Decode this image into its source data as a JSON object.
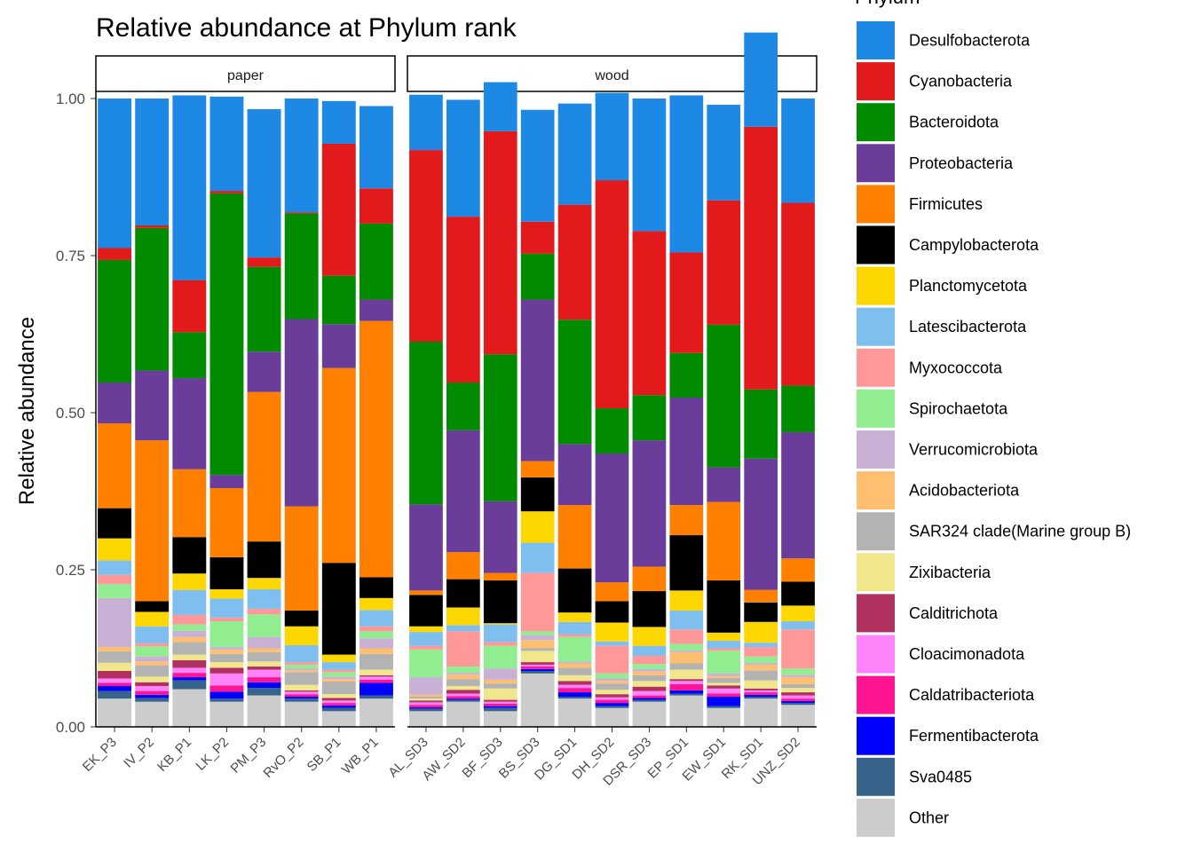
{
  "chart_data": {
    "type": "bar",
    "stacked": true,
    "title": "Relative abundance at Phylum rank",
    "ylabel": "Relative abundance",
    "xlabel": "",
    "ylim": [
      0,
      1
    ],
    "yticks": [
      "0.00",
      "0.25",
      "0.50",
      "0.75",
      "1.00"
    ],
    "legend": {
      "title": "Phylum",
      "position": "right"
    },
    "series": [
      {
        "name": "Other",
        "color": "#CCCCCC"
      },
      {
        "name": "Sva0485",
        "color": "#36648B"
      },
      {
        "name": "Fermentibacterota",
        "color": "#0000FF"
      },
      {
        "name": "Caldatribacteriota",
        "color": "#FF1493"
      },
      {
        "name": "Cloacimonadota",
        "color": "#FF83FA"
      },
      {
        "name": "Calditrichota",
        "color": "#B03060"
      },
      {
        "name": "Zixibacteria",
        "color": "#F0E68C"
      },
      {
        "name": "SAR324 clade(Marine group B)",
        "color": "#B3B3B3"
      },
      {
        "name": "Acidobacteriota",
        "color": "#FFBF70"
      },
      {
        "name": "Verrucomicrobiota",
        "color": "#C9B1D6"
      },
      {
        "name": "Spirochaetota",
        "color": "#90EE90"
      },
      {
        "name": "Myxococcota",
        "color": "#FF9999"
      },
      {
        "name": "Latescibacterota",
        "color": "#7FBFEF"
      },
      {
        "name": "Planctomycetota",
        "color": "#FFD700"
      },
      {
        "name": "Campylobacterota",
        "color": "#000000"
      },
      {
        "name": "Firmicutes",
        "color": "#FF7F00"
      },
      {
        "name": "Proteobacteria",
        "color": "#6A3D9A"
      },
      {
        "name": "Bacteroidota",
        "color": "#008B00"
      },
      {
        "name": "Cyanobacteria",
        "color": "#E31A1C"
      },
      {
        "name": "Desulfobacterota",
        "color": "#1E88E5"
      }
    ],
    "facets": [
      {
        "name": "paper",
        "samples": [
          {
            "name": "EK_P3",
            "values": [
              0.045,
              0.012,
              0.008,
              0.005,
              0.007,
              0.012,
              0.013,
              0.018,
              0.007,
              0.078,
              0.022,
              0.015,
              0.023,
              0.035,
              0.048,
              0.135,
              0.065,
              0.195,
              0.019,
              0.238
            ]
          },
          {
            "name": "IV_P2",
            "values": [
              0.04,
              0.006,
              0.005,
              0.006,
              0.008,
              0.006,
              0.009,
              0.018,
              0.006,
              0.008,
              0.016,
              0.005,
              0.027,
              0.023,
              0.017,
              0.256,
              0.111,
              0.227,
              0.004,
              0.202
            ]
          },
          {
            "name": "KB_P1",
            "values": [
              0.06,
              0.014,
              0.005,
              0.007,
              0.008,
              0.012,
              0.009,
              0.02,
              0.008,
              0.01,
              0.01,
              0.015,
              0.04,
              0.026,
              0.058,
              0.108,
              0.145,
              0.073,
              0.083,
              0.294
            ]
          },
          {
            "name": "LK_P2",
            "values": [
              0.04,
              0.005,
              0.011,
              0.01,
              0.019,
              0.009,
              0.009,
              0.013,
              0.007,
              0.004,
              0.041,
              0.006,
              0.03,
              0.015,
              0.051,
              0.11,
              0.021,
              0.448,
              0.004,
              0.15
            ]
          },
          {
            "name": "PM_P3",
            "values": [
              0.05,
              0.012,
              0.009,
              0.008,
              0.012,
              0.005,
              0.008,
              0.015,
              0.006,
              0.018,
              0.036,
              0.009,
              0.031,
              0.018,
              0.058,
              0.238,
              0.064,
              0.135,
              0.015,
              0.236
            ]
          },
          {
            "name": "RvO_P2",
            "values": [
              0.04,
              0.005,
              0.003,
              0.004,
              0.004,
              0.002,
              0.009,
              0.02,
              0.003,
              0.003,
              0.006,
              0.004,
              0.027,
              0.03,
              0.025,
              0.166,
              0.298,
              0.168,
              0.002,
              0.181
            ]
          },
          {
            "name": "SB_P1",
            "values": [
              0.025,
              0.005,
              0.004,
              0.004,
              0.004,
              0.004,
              0.006,
              0.02,
              0.004,
              0.004,
              0.007,
              0.004,
              0.012,
              0.012,
              0.146,
              0.31,
              0.07,
              0.077,
              0.21,
              0.068
            ]
          },
          {
            "name": "WB_P1",
            "values": [
              0.045,
              0.005,
              0.02,
              0.005,
              0.005,
              0.002,
              0.009,
              0.025,
              0.009,
              0.016,
              0.011,
              0.008,
              0.026,
              0.019,
              0.033,
              0.408,
              0.034,
              0.121,
              0.056,
              0.131
            ]
          }
        ]
      },
      {
        "name": "wood",
        "samples": [
          {
            "name": "AL_SD3",
            "values": [
              0.025,
              0.004,
              0.002,
              0.004,
              0.004,
              0.003,
              0.003,
              0.003,
              0.003,
              0.028,
              0.044,
              0.006,
              0.022,
              0.009,
              0.05,
              0.007,
              0.137,
              0.259,
              0.305,
              0.088
            ]
          },
          {
            "name": "AW_SD2",
            "values": [
              0.04,
              0.003,
              0.002,
              0.004,
              0.004,
              0.006,
              0.006,
              0.011,
              0.007,
              0.003,
              0.01,
              0.056,
              0.01,
              0.028,
              0.045,
              0.043,
              0.194,
              0.076,
              0.264,
              0.186
            ]
          },
          {
            "name": "BF_SD3",
            "values": [
              0.025,
              0.005,
              0.003,
              0.004,
              0.003,
              0.003,
              0.018,
              0.008,
              0.006,
              0.018,
              0.036,
              0.006,
              0.028,
              0.002,
              0.068,
              0.012,
              0.114,
              0.234,
              0.355,
              0.078
            ]
          },
          {
            "name": "BS_SD3",
            "values": [
              0.085,
              0.004,
              0.003,
              0.004,
              0.003,
              0.004,
              0.018,
              0.004,
              0.013,
              0.008,
              0.006,
              0.093,
              0.048,
              0.05,
              0.054,
              0.026,
              0.257,
              0.073,
              0.051,
              0.178
            ]
          },
          {
            "name": "DG_SD1",
            "values": [
              0.045,
              0.003,
              0.007,
              0.007,
              0.005,
              0.006,
              0.009,
              0.012,
              0.007,
              0.003,
              0.039,
              0.004,
              0.02,
              0.015,
              0.07,
              0.101,
              0.097,
              0.198,
              0.183,
              0.161
            ]
          },
          {
            "name": "DH_SD2",
            "values": [
              0.03,
              0.003,
              0.005,
              0.005,
              0.004,
              0.005,
              0.007,
              0.01,
              0.004,
              0.004,
              0.008,
              0.044,
              0.007,
              0.03,
              0.034,
              0.03,
              0.205,
              0.072,
              0.363,
              0.139
            ]
          },
          {
            "name": "DSR_SD3",
            "values": [
              0.04,
              0.003,
              0.003,
              0.004,
              0.007,
              0.007,
              0.009,
              0.009,
              0.006,
              0.004,
              0.008,
              0.013,
              0.016,
              0.03,
              0.057,
              0.039,
              0.201,
              0.072,
              0.261,
              0.211
            ]
          },
          {
            "name": "EP_SD1",
            "values": [
              0.05,
              0.003,
              0.005,
              0.01,
              0.005,
              0.003,
              0.015,
              0.01,
              0.018,
              0.003,
              0.01,
              0.023,
              0.03,
              0.032,
              0.088,
              0.048,
              0.171,
              0.071,
              0.16,
              0.25
            ]
          },
          {
            "name": "EW_SD1",
            "values": [
              0.03,
              0.003,
              0.015,
              0.005,
              0.008,
              0.005,
              0.004,
              0.008,
              0.003,
              0.004,
              0.036,
              0.004,
              0.012,
              0.013,
              0.083,
              0.125,
              0.055,
              0.227,
              0.198,
              0.152
            ]
          },
          {
            "name": "RK_SD1",
            "values": [
              0.045,
              0.003,
              0.003,
              0.004,
              0.003,
              0.003,
              0.013,
              0.016,
              0.009,
              0.003,
              0.01,
              0.015,
              0.007,
              0.033,
              0.031,
              0.02,
              0.209,
              0.11,
              0.418,
              0.15
            ]
          },
          {
            "name": "UNZ_SD2",
            "values": [
              0.035,
              0.003,
              0.003,
              0.004,
              0.005,
              0.005,
              0.007,
              0.006,
              0.011,
              0.004,
              0.01,
              0.062,
              0.013,
              0.025,
              0.038,
              0.037,
              0.201,
              0.074,
              0.291,
              0.166
            ]
          }
        ]
      }
    ]
  }
}
